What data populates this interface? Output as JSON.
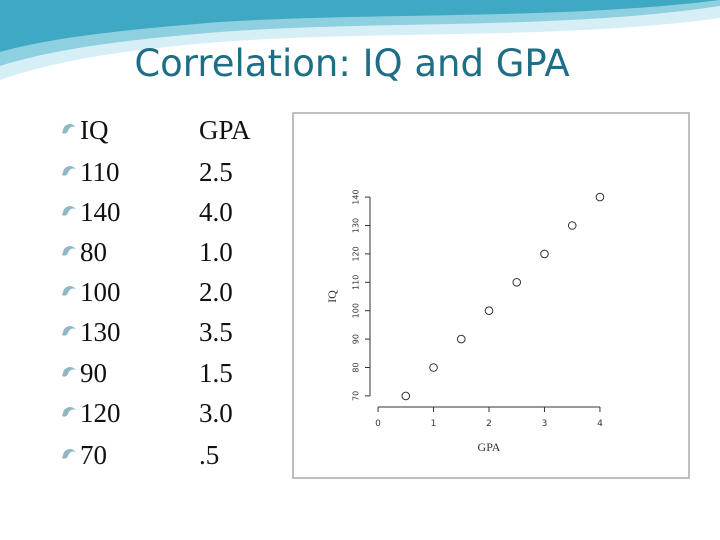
{
  "title": "Correlation: IQ and GPA",
  "table": {
    "header": [
      "IQ",
      "GPA"
    ],
    "rows": [
      [
        "110",
        "2.5"
      ],
      [
        "140",
        "4.0"
      ],
      [
        "80",
        "1.0"
      ],
      [
        "100",
        "2.0"
      ],
      [
        "130",
        "3.5"
      ],
      [
        "90",
        "1.5"
      ],
      [
        "120",
        "3.0"
      ],
      [
        "70",
        ".5"
      ]
    ]
  },
  "chart_data": {
    "type": "scatter",
    "x_label": "GPA",
    "y_label": "IQ",
    "x": [
      0.5,
      1,
      1.5,
      2,
      2.5,
      3,
      3.5,
      4
    ],
    "values": [
      70,
      80,
      90,
      100,
      110,
      120,
      130,
      140
    ],
    "xlim": [
      -0.1,
      4.1
    ],
    "xticks": [
      0,
      1,
      2,
      3,
      4
    ],
    "ylim": [
      67.5,
      142.5
    ],
    "yticks": [
      70,
      80,
      90,
      100,
      110,
      120,
      130,
      140
    ],
    "color": "#333333"
  }
}
